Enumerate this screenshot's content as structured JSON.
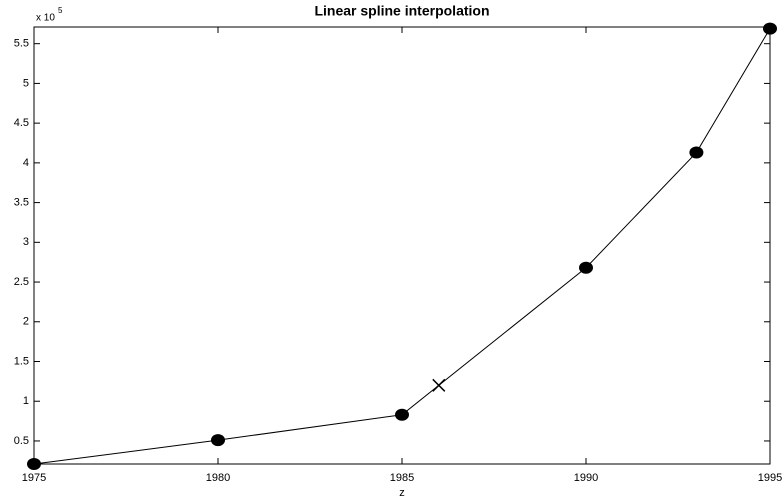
{
  "chart_data": {
    "type": "line",
    "title": "Linear spline interpolation",
    "xlabel": "z",
    "y_multiplier": {
      "base": "x 10",
      "exponent": "5"
    },
    "x": [
      1975,
      1980,
      1985,
      1990,
      1993,
      1995
    ],
    "values": [
      21000,
      51000,
      83000,
      268000,
      413000,
      569000
    ],
    "color": "#000000",
    "query_x": 1986,
    "query_value": 120000,
    "xlim": [
      1975,
      1995
    ],
    "xticks": [
      1975,
      1980,
      1985,
      1990,
      1995
    ],
    "ylim": [
      21000,
      571000
    ],
    "yticks": [
      {
        "value": 50000,
        "label": "0.5"
      },
      {
        "value": 100000,
        "label": "1"
      },
      {
        "value": 150000,
        "label": "1.5"
      },
      {
        "value": 200000,
        "label": "2"
      },
      {
        "value": 250000,
        "label": "2.5"
      },
      {
        "value": 300000,
        "label": "3"
      },
      {
        "value": 350000,
        "label": "3.5"
      },
      {
        "value": 400000,
        "label": "4"
      },
      {
        "value": 450000,
        "label": "4.5"
      },
      {
        "value": 500000,
        "label": "5"
      },
      {
        "value": 550000,
        "label": "5.5"
      }
    ],
    "grid": false
  }
}
